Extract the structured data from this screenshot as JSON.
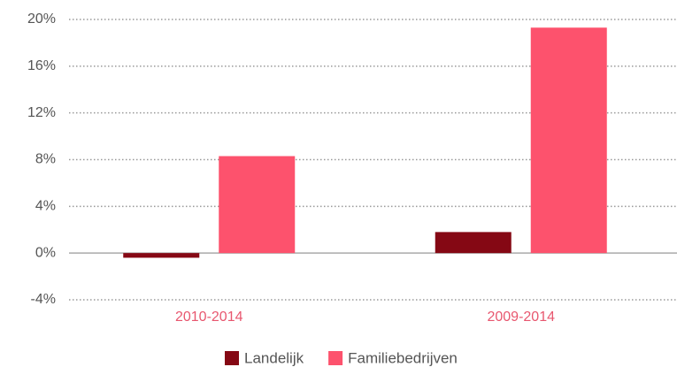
{
  "chart_data": {
    "type": "bar",
    "categories": [
      "2010-2014",
      "2009-2014"
    ],
    "series": [
      {
        "name": "Landelijk",
        "color": "#850814",
        "values": [
          -0.4,
          1.8
        ]
      },
      {
        "name": "Familiebedrijven",
        "color": "#fd526d",
        "values": [
          8.3,
          19.3
        ]
      }
    ],
    "ylim": [
      -4,
      20
    ],
    "yticks": [
      {
        "value": -4,
        "label": "-4%"
      },
      {
        "value": 0,
        "label": "0%"
      },
      {
        "value": 4,
        "label": "4%"
      },
      {
        "value": 8,
        "label": "8%"
      },
      {
        "value": 12,
        "label": "12%"
      },
      {
        "value": 16,
        "label": "16%"
      },
      {
        "value": 20,
        "label": "20%"
      }
    ],
    "grid": true,
    "legend": "bottom",
    "category_label_color": "#e8576f"
  }
}
